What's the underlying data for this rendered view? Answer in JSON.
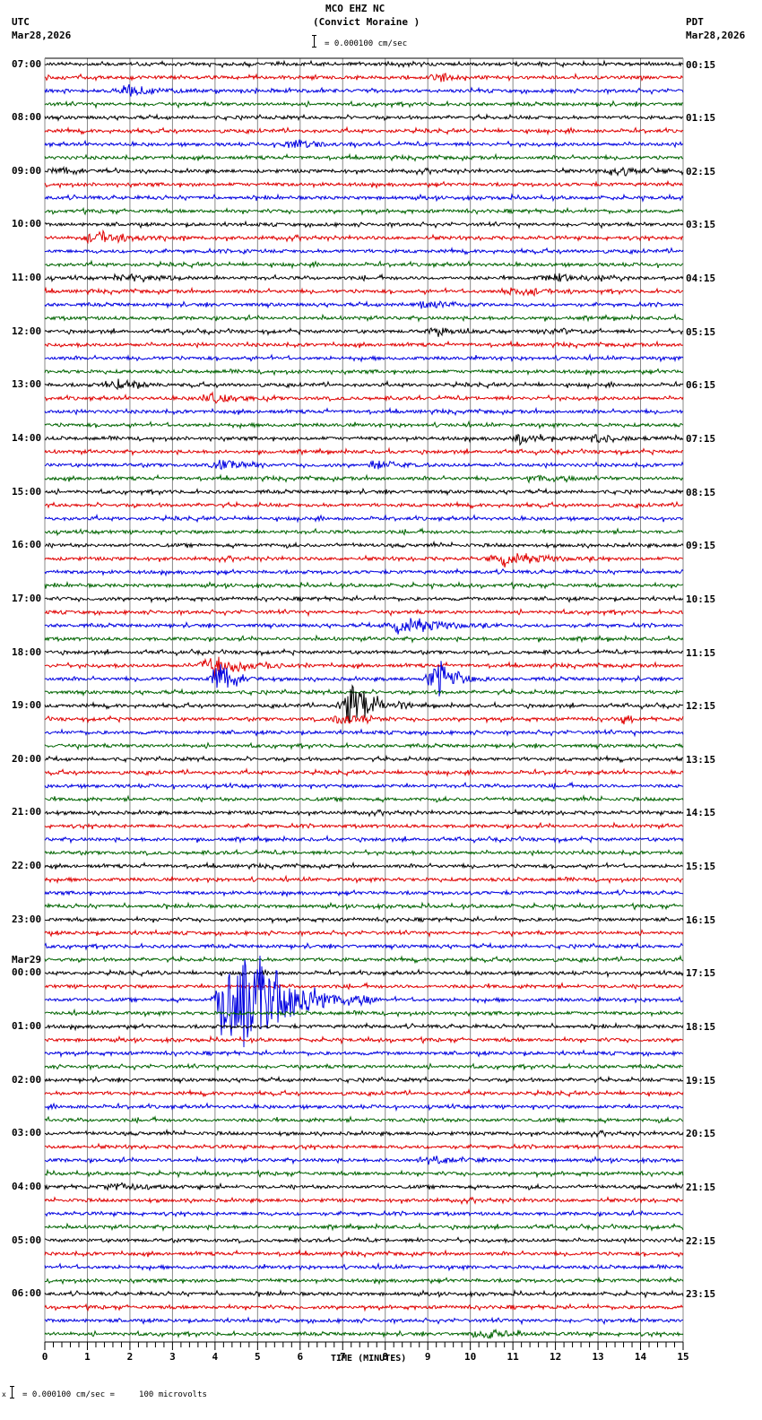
{
  "header": {
    "station": "MCO EHZ NC",
    "location": "(Convict Moraine )",
    "scale_text": "= 0.000100 cm/sec",
    "left_tz": "UTC",
    "left_date": "Mar28,2026",
    "right_tz": "PDT",
    "right_date": "Mar28,2026"
  },
  "footer": {
    "scale_text": "= 0.000100 cm/sec =     100 microvolts",
    "scale_prefix": "x"
  },
  "chart_data": {
    "type": "line",
    "title": "MCO EHZ NC (Convict Moraine ) helicorder",
    "xlabel": "TIME (MINUTES)",
    "ylabel": "",
    "xlim": [
      0,
      15
    ],
    "x_ticks": [
      "0",
      "1",
      "2",
      "3",
      "4",
      "5",
      "6",
      "7",
      "8",
      "9",
      "10",
      "11",
      "12",
      "13",
      "14",
      "15"
    ],
    "minor_ticks_per_minute": 4,
    "traces_per_hour": 4,
    "trace_minutes": 15,
    "trace_colors": [
      "#000000",
      "#e00000",
      "#0000e0",
      "#006400"
    ],
    "grid_color": "#888888",
    "left_labels": [
      {
        "hour": 0,
        "text": "07:00"
      },
      {
        "hour": 1,
        "text": "08:00"
      },
      {
        "hour": 2,
        "text": "09:00"
      },
      {
        "hour": 3,
        "text": "10:00"
      },
      {
        "hour": 4,
        "text": "11:00"
      },
      {
        "hour": 5,
        "text": "12:00"
      },
      {
        "hour": 6,
        "text": "13:00"
      },
      {
        "hour": 7,
        "text": "14:00"
      },
      {
        "hour": 8,
        "text": "15:00"
      },
      {
        "hour": 9,
        "text": "16:00"
      },
      {
        "hour": 10,
        "text": "17:00"
      },
      {
        "hour": 11,
        "text": "18:00"
      },
      {
        "hour": 12,
        "text": "19:00"
      },
      {
        "hour": 13,
        "text": "20:00"
      },
      {
        "hour": 14,
        "text": "21:00"
      },
      {
        "hour": 15,
        "text": "22:00"
      },
      {
        "hour": 16,
        "text": "23:00"
      },
      {
        "hour": 17,
        "text": "00:00",
        "date": "Mar29"
      },
      {
        "hour": 18,
        "text": "01:00"
      },
      {
        "hour": 19,
        "text": "02:00"
      },
      {
        "hour": 20,
        "text": "03:00"
      },
      {
        "hour": 21,
        "text": "04:00"
      },
      {
        "hour": 22,
        "text": "05:00"
      },
      {
        "hour": 23,
        "text": "06:00"
      }
    ],
    "right_labels": [
      "00:15",
      "01:15",
      "02:15",
      "03:15",
      "04:15",
      "05:15",
      "06:15",
      "07:15",
      "08:15",
      "09:15",
      "10:15",
      "11:15",
      "12:15",
      "13:15",
      "14:15",
      "15:15",
      "16:15",
      "17:15",
      "18:15",
      "19:15",
      "20:15",
      "21:15",
      "22:15",
      "23:15"
    ],
    "events": [
      {
        "trace": 2,
        "minute": 2.0,
        "amp": 7,
        "width": 0.8
      },
      {
        "trace": 1,
        "minute": 9.3,
        "amp": 5,
        "width": 0.5
      },
      {
        "trace": 6,
        "minute": 5.8,
        "amp": 5,
        "width": 0.6
      },
      {
        "trace": 8,
        "minute": 0.4,
        "amp": 5,
        "width": 0.6
      },
      {
        "trace": 8,
        "minute": 13.5,
        "amp": 6,
        "width": 0.6
      },
      {
        "trace": 13,
        "minute": 1.3,
        "amp": 7,
        "width": 0.8
      },
      {
        "trace": 14,
        "minute": 4.7,
        "amp": 7,
        "width": 0.1
      },
      {
        "trace": 16,
        "minute": 2.0,
        "amp": 5,
        "width": 0.8
      },
      {
        "trace": 16,
        "minute": 12.0,
        "amp": 5,
        "width": 0.9
      },
      {
        "trace": 17,
        "minute": 11.0,
        "amp": 5,
        "width": 0.7
      },
      {
        "trace": 18,
        "minute": 9.0,
        "amp": 6,
        "width": 0.7
      },
      {
        "trace": 20,
        "minute": 9.2,
        "amp": 5,
        "width": 0.5
      },
      {
        "trace": 20,
        "minute": 12.0,
        "amp": 5,
        "width": 0.5
      },
      {
        "trace": 24,
        "minute": 1.7,
        "amp": 6,
        "width": 0.6
      },
      {
        "trace": 25,
        "minute": 3.9,
        "amp": 9,
        "width": 0.6
      },
      {
        "trace": 28,
        "minute": 11.2,
        "amp": 7,
        "width": 0.5
      },
      {
        "trace": 28,
        "minute": 13.0,
        "amp": 5,
        "width": 0.7
      },
      {
        "trace": 30,
        "minute": 4.2,
        "amp": 6,
        "width": 0.6
      },
      {
        "trace": 30,
        "minute": 7.8,
        "amp": 6,
        "width": 0.5
      },
      {
        "trace": 31,
        "minute": 11.6,
        "amp": 5,
        "width": 0.6
      },
      {
        "trace": 37,
        "minute": 10.9,
        "amp": 9,
        "width": 0.9
      },
      {
        "trace": 42,
        "minute": 8.5,
        "amp": 12,
        "width": 0.9
      },
      {
        "trace": 45,
        "minute": 4.0,
        "amp": 14,
        "width": 0.9
      },
      {
        "trace": 46,
        "minute": 4.1,
        "amp": 30,
        "width": 0.4
      },
      {
        "trace": 46,
        "minute": 9.2,
        "amp": 30,
        "width": 0.5
      },
      {
        "trace": 48,
        "minute": 7.2,
        "amp": 40,
        "width": 0.6
      },
      {
        "trace": 49,
        "minute": 13.6,
        "amp": 8,
        "width": 0.2
      },
      {
        "trace": 49,
        "minute": 7.0,
        "amp": 8,
        "width": 0.5
      },
      {
        "trace": 70,
        "minute": 4.8,
        "amp": 75,
        "width": 1.2
      },
      {
        "trace": 70,
        "minute": 4.2,
        "amp": 45,
        "width": 0.5
      },
      {
        "trace": 82,
        "minute": 9.0,
        "amp": 5,
        "width": 0.6
      },
      {
        "trace": 84,
        "minute": 1.7,
        "amp": 5,
        "width": 0.8
      },
      {
        "trace": 95,
        "minute": 10.4,
        "amp": 6,
        "width": 0.6
      }
    ]
  }
}
